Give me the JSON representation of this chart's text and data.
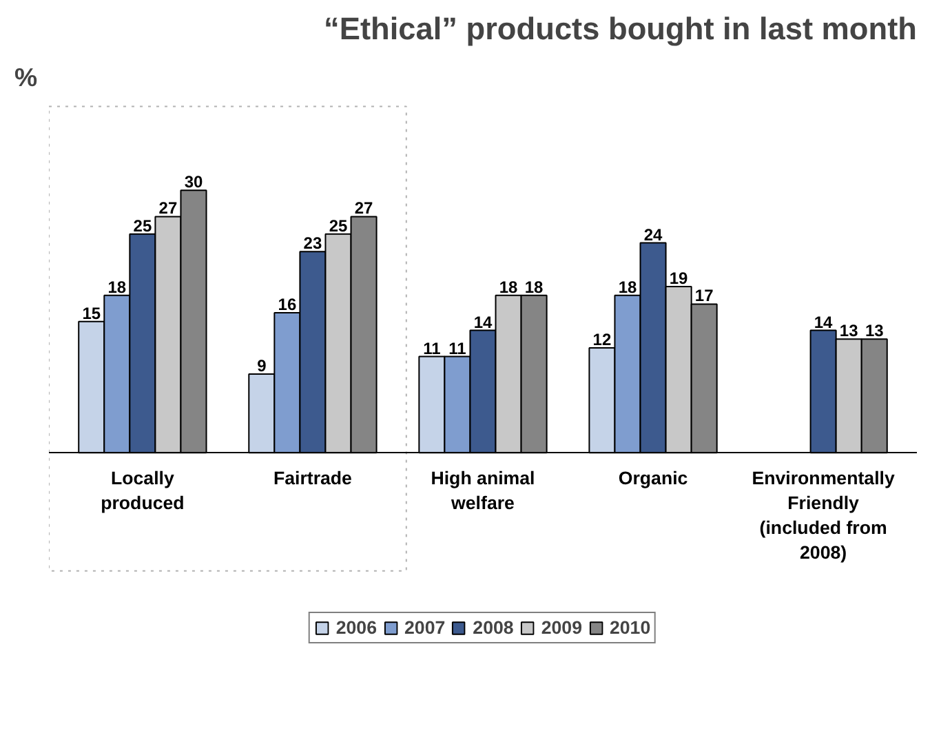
{
  "chart_data": {
    "type": "bar",
    "title": "“Ethical” products bought in last month",
    "ylabel": "%",
    "categories": [
      "Locally produced",
      "Fairtrade",
      "High animal welfare",
      "Organic",
      "Environmentally Friendly (included from 2008)"
    ],
    "series": [
      {
        "name": "2006",
        "color": "#c5d3e8",
        "values": [
          15,
          9,
          11,
          12,
          null
        ]
      },
      {
        "name": "2007",
        "color": "#7f9dcf",
        "values": [
          18,
          16,
          11,
          18,
          null
        ]
      },
      {
        "name": "2008",
        "color": "#3d5a8e",
        "values": [
          25,
          23,
          14,
          24,
          14
        ]
      },
      {
        "name": "2009",
        "color": "#c8c8c8",
        "values": [
          27,
          25,
          18,
          19,
          13
        ]
      },
      {
        "name": "2010",
        "color": "#858585",
        "values": [
          30,
          27,
          18,
          17,
          13
        ]
      }
    ],
    "data_labels": true,
    "legend": "bottom",
    "grid": false
  }
}
